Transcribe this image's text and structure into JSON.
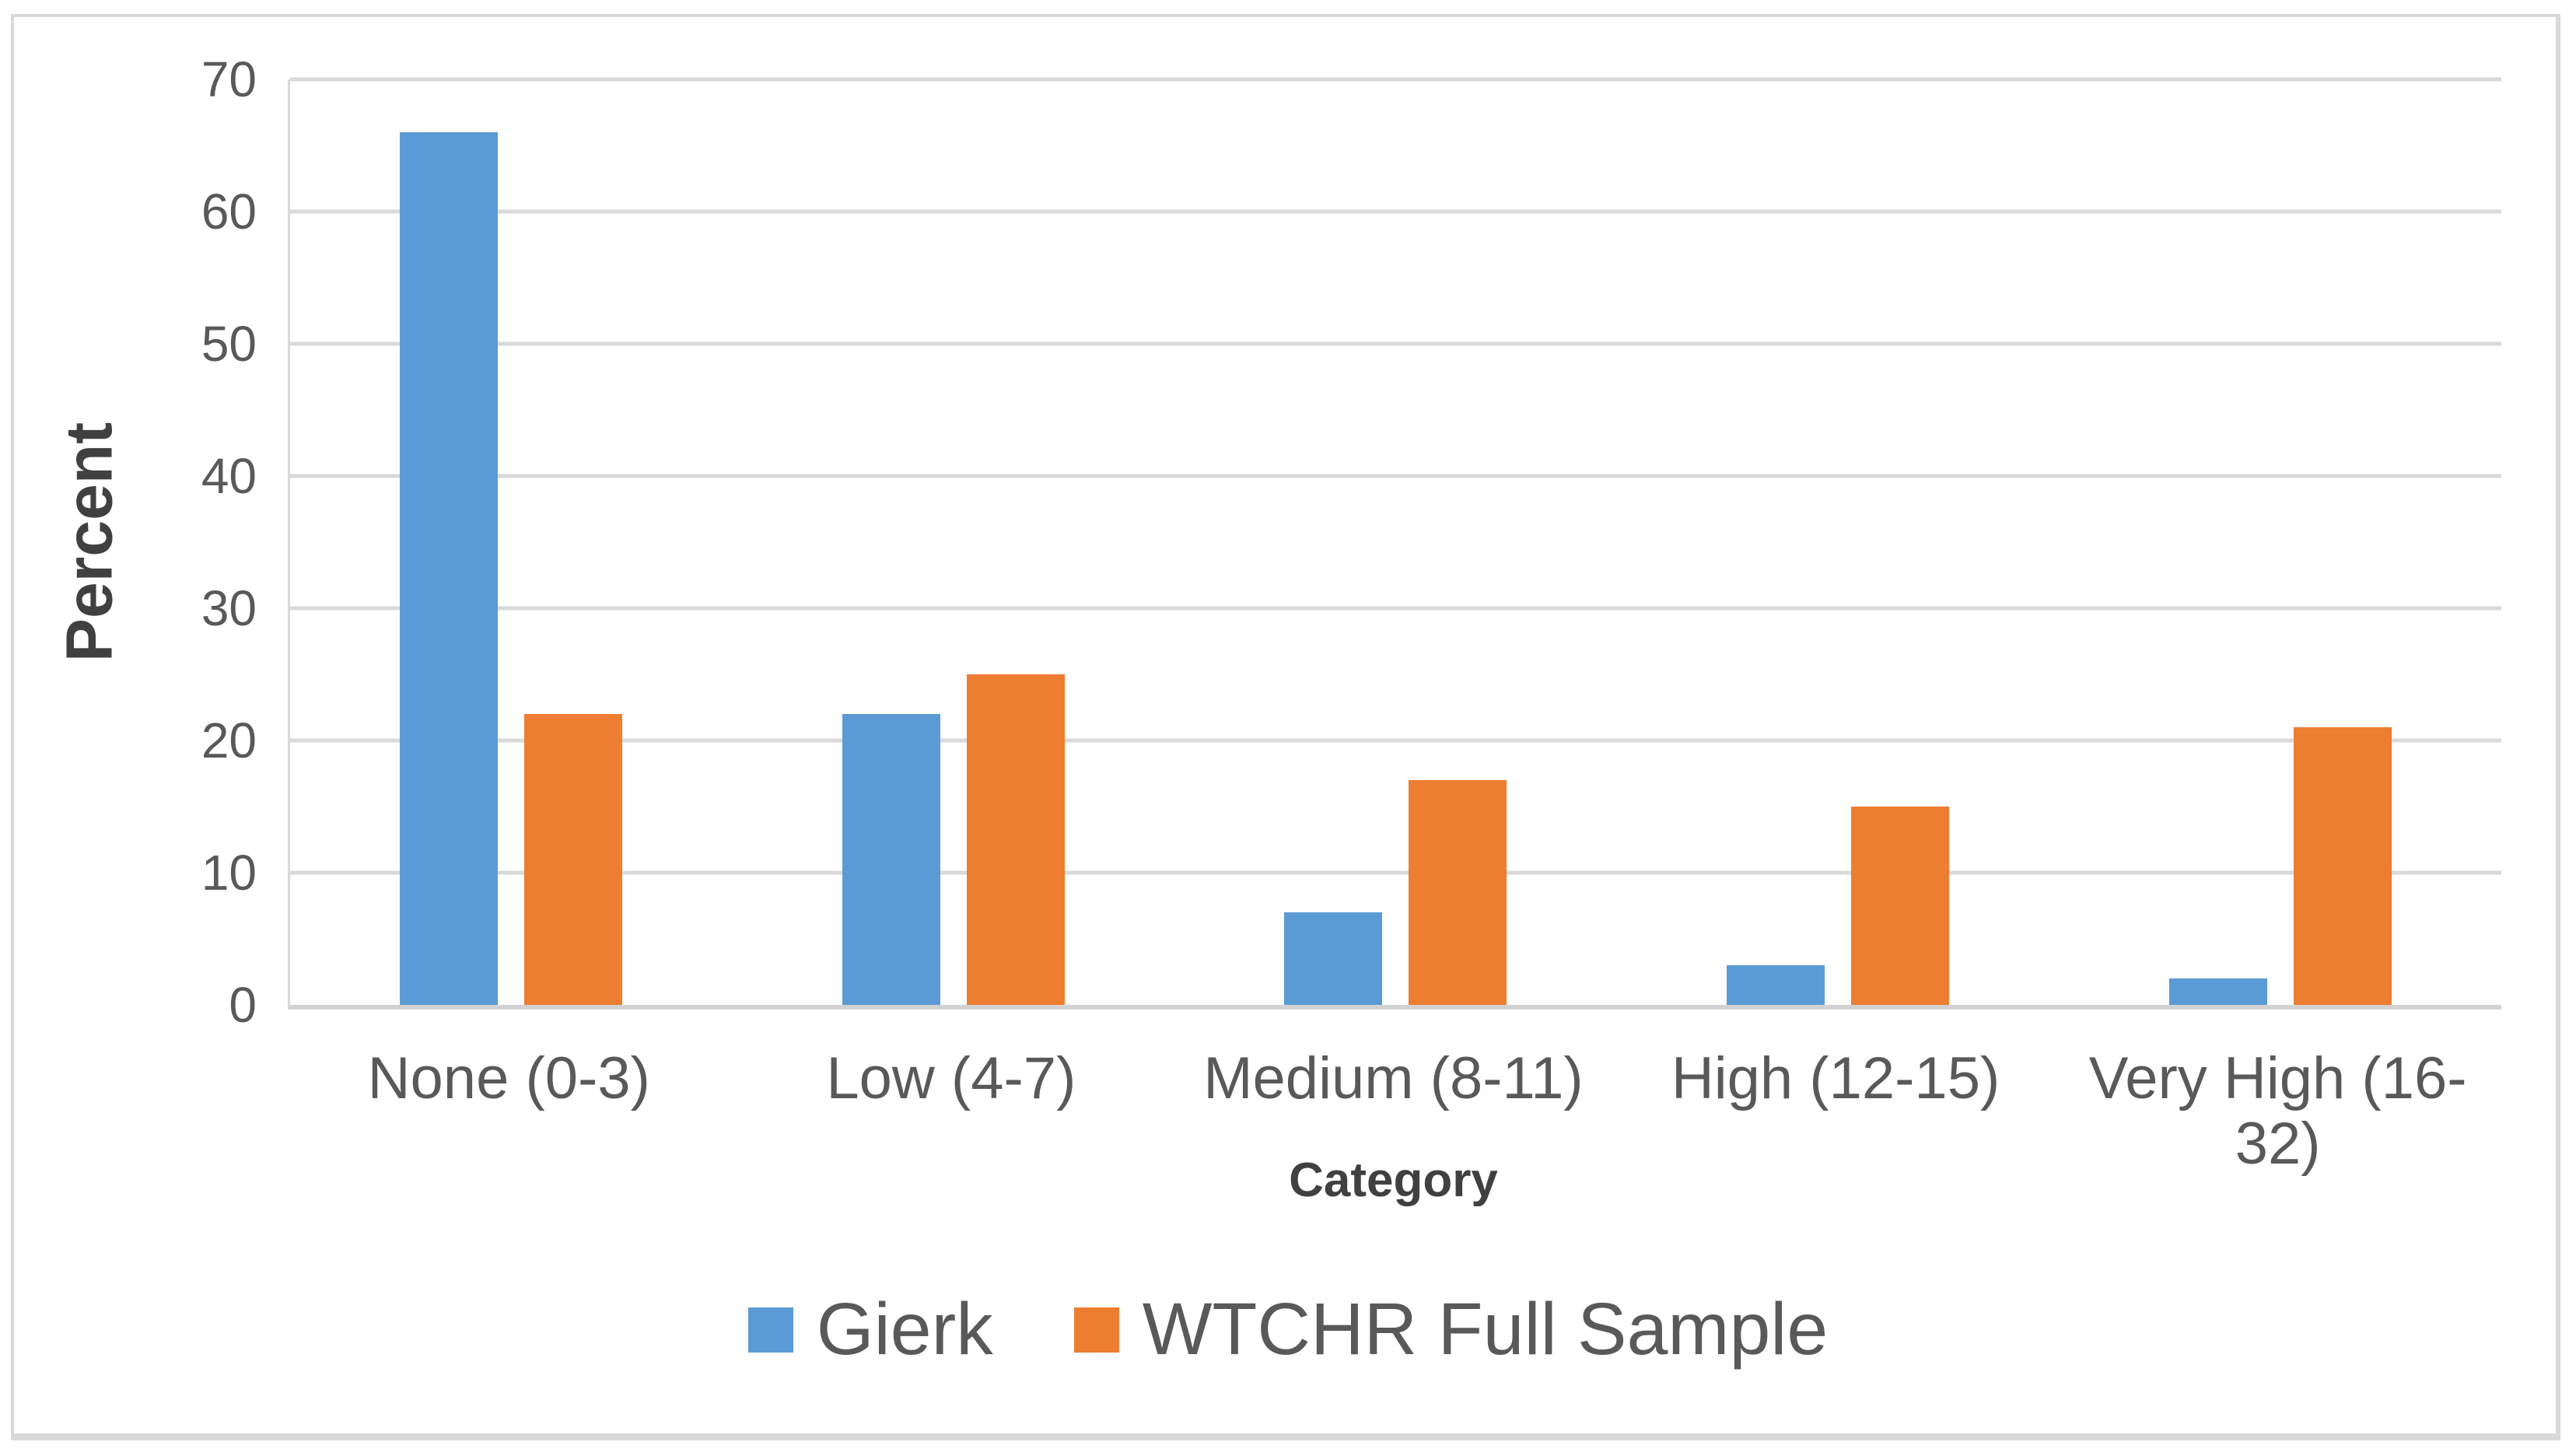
{
  "chart_data": {
    "type": "bar",
    "title": "",
    "categories": [
      "None (0-3)",
      "Low (4-7)",
      "Medium (8-11)",
      "High (12-15)",
      "Very High (16-32)"
    ],
    "series": [
      {
        "name": "Gierk",
        "color": "#5B9BD5",
        "values": [
          66,
          22,
          7,
          3,
          2
        ]
      },
      {
        "name": "WTCHR Full Sample",
        "color": "#ED7D31",
        "values": [
          22,
          25,
          17,
          15,
          21
        ]
      }
    ],
    "xlabel": "Category",
    "ylabel": "Percent",
    "ylim": [
      0,
      70
    ],
    "yticks": [
      0,
      10,
      20,
      30,
      40,
      50,
      60,
      70
    ],
    "grid": "horizontal",
    "legend_position": "bottom",
    "colors": {
      "background": "#FFFFFF",
      "gridline": "#D9D9D9",
      "frame_border": "#D9D9D9",
      "tick_text": "#595959",
      "axis_title_text": "#404040"
    }
  }
}
